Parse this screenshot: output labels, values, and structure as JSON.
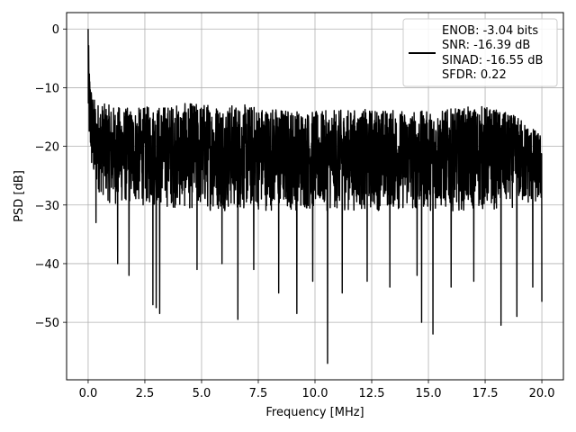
{
  "chart_data": {
    "type": "line",
    "title": "",
    "xlabel": "Frequency [MHz]",
    "ylabel": "PSD [dB]",
    "xlim": [
      -0.95,
      20.95
    ],
    "ylim": [
      -59.8,
      2.8
    ],
    "xticks": [
      0.0,
      2.5,
      5.0,
      7.5,
      10.0,
      12.5,
      15.0,
      17.5,
      20.0
    ],
    "xtick_labels": [
      "0.0",
      "2.5",
      "5.0",
      "7.5",
      "10.0",
      "12.5",
      "15.0",
      "17.5",
      "20.0"
    ],
    "yticks": [
      0,
      -10,
      -20,
      -30,
      -40,
      -50
    ],
    "ytick_labels": [
      "0",
      "−10",
      "−20",
      "−30",
      "−40",
      "−50"
    ],
    "grid": true,
    "legend_position": "top-right",
    "series_color": "#000000",
    "legend_lines": [
      "ENOB: -3.04 bits",
      "SNR: -16.39 dB",
      "SINAD: -16.55 dB",
      "SFDR: 0.22"
    ],
    "series": [
      {
        "x_start": 0.0,
        "x_end": 20.0,
        "upper_envelope": [
          [
            0.0,
            0.0
          ],
          [
            0.05,
            -6
          ],
          [
            0.1,
            -8
          ],
          [
            0.2,
            -11
          ],
          [
            0.3,
            -12
          ],
          [
            0.5,
            -12.5
          ],
          [
            1.0,
            -13
          ],
          [
            2.0,
            -13.5
          ],
          [
            3.0,
            -13
          ],
          [
            5.0,
            -12.5
          ],
          [
            7.5,
            -13
          ],
          [
            10.0,
            -14
          ],
          [
            12.5,
            -13.5
          ],
          [
            15.0,
            -14
          ],
          [
            17.5,
            -13
          ],
          [
            19.0,
            -15
          ],
          [
            20.0,
            -18
          ]
        ],
        "lower_envelope": [
          [
            0.0,
            -19
          ],
          [
            0.2,
            -27
          ],
          [
            0.5,
            -28
          ],
          [
            1.0,
            -30
          ],
          [
            2.0,
            -30
          ],
          [
            5.0,
            -31
          ],
          [
            7.5,
            -31
          ],
          [
            10.0,
            -31
          ],
          [
            12.5,
            -31
          ],
          [
            15.0,
            -31
          ],
          [
            17.5,
            -31
          ],
          [
            20.0,
            -30
          ]
        ],
        "deep_nulls": [
          [
            0.35,
            -33
          ],
          [
            1.3,
            -40
          ],
          [
            1.8,
            -42
          ],
          [
            2.85,
            -47
          ],
          [
            3.0,
            -47.5
          ],
          [
            3.15,
            -48.5
          ],
          [
            4.8,
            -41
          ],
          [
            5.9,
            -40
          ],
          [
            6.6,
            -49.5
          ],
          [
            7.3,
            -41
          ],
          [
            8.4,
            -45
          ],
          [
            9.2,
            -48.5
          ],
          [
            9.9,
            -43
          ],
          [
            10.55,
            -57
          ],
          [
            11.2,
            -45
          ],
          [
            12.3,
            -43
          ],
          [
            13.3,
            -44
          ],
          [
            14.5,
            -42
          ],
          [
            14.7,
            -50
          ],
          [
            15.2,
            -52
          ],
          [
            16.0,
            -44
          ],
          [
            17.0,
            -43
          ],
          [
            18.2,
            -50.5
          ],
          [
            18.9,
            -49
          ],
          [
            19.6,
            -44
          ],
          [
            20.0,
            -46.5
          ]
        ]
      }
    ]
  }
}
